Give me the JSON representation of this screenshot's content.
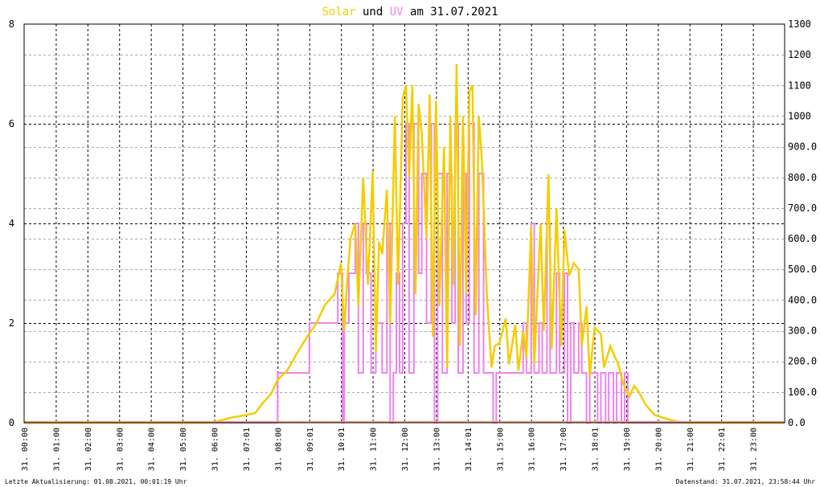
{
  "title": {
    "word1": "Solar",
    "word2": "und",
    "word3": "UV",
    "word4": "am 31.07.2021"
  },
  "footer": {
    "left": "Letzte Aktualisierung: 01.08.2021, 00:01:19 Uhr",
    "right": "Datenstand: 31.07.2021, 23:58:44 Uhr"
  },
  "chart_data": {
    "type": "line",
    "title": "Solar und UV am 31.07.2021",
    "grid": true,
    "legend": "none",
    "x_ticks": [
      "31. 00:00",
      "31. 01:00",
      "31. 02:00",
      "31. 03:00",
      "31. 04:00",
      "31. 05:00",
      "31. 06:00",
      "31. 07:01",
      "31. 08:00",
      "31. 09:01",
      "31. 10:01",
      "31. 11:00",
      "31. 12:00",
      "31. 13:00",
      "31. 14:01",
      "31. 15:00",
      "31. 16:00",
      "31. 17:00",
      "31. 18:01",
      "31. 19:00",
      "31. 20:00",
      "31. 21:00",
      "31. 22:01",
      "31. 23:00"
    ],
    "x_range_hours": [
      0,
      24
    ],
    "y_left": {
      "ticks": [
        "0",
        "2",
        "4",
        "6",
        "8"
      ],
      "range": [
        0,
        8
      ]
    },
    "y_right": {
      "ticks": [
        "0.0",
        "100.0",
        "200.0",
        "300.0",
        "400.0",
        "500.0",
        "600.0",
        "700.0",
        "800.0",
        "900.0",
        "1000",
        "1100",
        "1200",
        "1300"
      ],
      "range": [
        0,
        1300
      ]
    },
    "series": [
      {
        "name": "Solar",
        "axis": "right",
        "color": "#f5cc00",
        "points": [
          [
            0,
            0
          ],
          [
            5.9,
            0
          ],
          [
            6.0,
            3
          ],
          [
            6.3,
            10
          ],
          [
            6.6,
            18
          ],
          [
            7.0,
            25
          ],
          [
            7.3,
            32
          ],
          [
            7.5,
            60
          ],
          [
            7.8,
            95
          ],
          [
            8.0,
            140
          ],
          [
            8.3,
            170
          ],
          [
            8.6,
            225
          ],
          [
            8.9,
            275
          ],
          [
            9.2,
            320
          ],
          [
            9.5,
            385
          ],
          [
            9.8,
            420
          ],
          [
            10.0,
            520
          ],
          [
            10.1,
            300
          ],
          [
            10.2,
            470
          ],
          [
            10.3,
            600
          ],
          [
            10.45,
            650
          ],
          [
            10.55,
            380
          ],
          [
            10.7,
            800
          ],
          [
            10.85,
            450
          ],
          [
            11.0,
            820
          ],
          [
            11.1,
            230
          ],
          [
            11.2,
            590
          ],
          [
            11.3,
            550
          ],
          [
            11.45,
            760
          ],
          [
            11.55,
            320
          ],
          [
            11.7,
            1000
          ],
          [
            11.8,
            450
          ],
          [
            11.95,
            1060
          ],
          [
            12.05,
            1100
          ],
          [
            12.15,
            800
          ],
          [
            12.25,
            1100
          ],
          [
            12.35,
            420
          ],
          [
            12.45,
            1040
          ],
          [
            12.55,
            940
          ],
          [
            12.7,
            600
          ],
          [
            12.8,
            1070
          ],
          [
            12.9,
            280
          ],
          [
            13.0,
            1050
          ],
          [
            13.1,
            380
          ],
          [
            13.25,
            900
          ],
          [
            13.35,
            180
          ],
          [
            13.45,
            1000
          ],
          [
            13.55,
            450
          ],
          [
            13.65,
            1170
          ],
          [
            13.75,
            250
          ],
          [
            13.85,
            1000
          ],
          [
            13.95,
            420
          ],
          [
            14.05,
            1080
          ],
          [
            14.15,
            1100
          ],
          [
            14.25,
            350
          ],
          [
            14.35,
            1000
          ],
          [
            14.45,
            850
          ],
          [
            14.6,
            420
          ],
          [
            14.75,
            180
          ],
          [
            14.85,
            250
          ],
          [
            15.0,
            260
          ],
          [
            15.1,
            300
          ],
          [
            15.2,
            340
          ],
          [
            15.3,
            190
          ],
          [
            15.5,
            320
          ],
          [
            15.6,
            170
          ],
          [
            15.75,
            300
          ],
          [
            15.85,
            210
          ],
          [
            16.0,
            640
          ],
          [
            16.1,
            190
          ],
          [
            16.3,
            650
          ],
          [
            16.4,
            300
          ],
          [
            16.55,
            810
          ],
          [
            16.65,
            240
          ],
          [
            16.8,
            700
          ],
          [
            16.95,
            250
          ],
          [
            17.05,
            630
          ],
          [
            17.2,
            480
          ],
          [
            17.35,
            520
          ],
          [
            17.5,
            500
          ],
          [
            17.6,
            250
          ],
          [
            17.75,
            380
          ],
          [
            17.85,
            150
          ],
          [
            18.0,
            310
          ],
          [
            18.2,
            290
          ],
          [
            18.3,
            180
          ],
          [
            18.5,
            250
          ],
          [
            18.75,
            190
          ],
          [
            18.9,
            130
          ],
          [
            19.1,
            85
          ],
          [
            19.25,
            120
          ],
          [
            19.4,
            100
          ],
          [
            19.6,
            60
          ],
          [
            19.9,
            25
          ],
          [
            20.3,
            12
          ],
          [
            20.6,
            4
          ],
          [
            20.9,
            0
          ],
          [
            24,
            0
          ]
        ]
      },
      {
        "name": "UV",
        "axis": "left",
        "color": "#ee82ee",
        "points": [
          [
            0,
            0
          ],
          [
            8.0,
            0
          ],
          [
            8.0,
            1
          ],
          [
            9.0,
            1
          ],
          [
            9.0,
            2
          ],
          [
            9.9,
            2
          ],
          [
            9.9,
            3
          ],
          [
            10.05,
            3
          ],
          [
            10.05,
            0
          ],
          [
            10.1,
            0
          ],
          [
            10.1,
            2
          ],
          [
            10.25,
            2
          ],
          [
            10.25,
            3
          ],
          [
            10.45,
            3
          ],
          [
            10.45,
            4
          ],
          [
            10.55,
            4
          ],
          [
            10.55,
            1
          ],
          [
            10.7,
            1
          ],
          [
            10.7,
            4
          ],
          [
            10.8,
            4
          ],
          [
            10.8,
            3
          ],
          [
            10.95,
            3
          ],
          [
            10.95,
            1
          ],
          [
            11.1,
            1
          ],
          [
            11.1,
            2
          ],
          [
            11.3,
            2
          ],
          [
            11.3,
            1
          ],
          [
            11.45,
            1
          ],
          [
            11.45,
            4
          ],
          [
            11.55,
            4
          ],
          [
            11.55,
            0
          ],
          [
            11.65,
            0
          ],
          [
            11.65,
            1
          ],
          [
            11.75,
            1
          ],
          [
            11.75,
            3
          ],
          [
            11.85,
            3
          ],
          [
            11.85,
            1
          ],
          [
            11.95,
            1
          ],
          [
            11.95,
            4
          ],
          [
            12.05,
            4
          ],
          [
            12.05,
            6
          ],
          [
            12.15,
            6
          ],
          [
            12.15,
            1
          ],
          [
            12.3,
            1
          ],
          [
            12.3,
            6
          ],
          [
            12.45,
            6
          ],
          [
            12.45,
            3
          ],
          [
            12.55,
            3
          ],
          [
            12.55,
            5
          ],
          [
            12.7,
            5
          ],
          [
            12.7,
            2
          ],
          [
            12.85,
            2
          ],
          [
            12.85,
            6
          ],
          [
            12.95,
            6
          ],
          [
            12.95,
            0
          ],
          [
            13.05,
            0
          ],
          [
            13.05,
            5
          ],
          [
            13.2,
            5
          ],
          [
            13.2,
            1
          ],
          [
            13.35,
            1
          ],
          [
            13.35,
            5
          ],
          [
            13.5,
            5
          ],
          [
            13.5,
            2
          ],
          [
            13.6,
            2
          ],
          [
            13.6,
            6
          ],
          [
            13.7,
            6
          ],
          [
            13.7,
            1
          ],
          [
            13.85,
            1
          ],
          [
            13.85,
            5
          ],
          [
            13.95,
            5
          ],
          [
            13.95,
            2
          ],
          [
            14.05,
            2
          ],
          [
            14.05,
            6
          ],
          [
            14.2,
            6
          ],
          [
            14.2,
            1
          ],
          [
            14.35,
            1
          ],
          [
            14.35,
            5
          ],
          [
            14.5,
            5
          ],
          [
            14.5,
            1
          ],
          [
            14.8,
            1
          ],
          [
            14.8,
            0
          ],
          [
            14.9,
            0
          ],
          [
            14.9,
            1
          ],
          [
            15.75,
            1
          ],
          [
            15.75,
            2
          ],
          [
            15.85,
            2
          ],
          [
            15.85,
            1
          ],
          [
            16.0,
            1
          ],
          [
            16.0,
            4
          ],
          [
            16.1,
            4
          ],
          [
            16.1,
            1
          ],
          [
            16.25,
            1
          ],
          [
            16.25,
            2
          ],
          [
            16.35,
            2
          ],
          [
            16.35,
            1
          ],
          [
            16.5,
            1
          ],
          [
            16.5,
            4
          ],
          [
            16.6,
            4
          ],
          [
            16.6,
            1
          ],
          [
            16.8,
            1
          ],
          [
            16.8,
            3
          ],
          [
            16.9,
            3
          ],
          [
            16.9,
            1
          ],
          [
            17.05,
            1
          ],
          [
            17.05,
            3
          ],
          [
            17.15,
            3
          ],
          [
            17.15,
            0
          ],
          [
            17.25,
            0
          ],
          [
            17.25,
            2
          ],
          [
            17.35,
            2
          ],
          [
            17.35,
            1
          ],
          [
            17.5,
            1
          ],
          [
            17.5,
            2
          ],
          [
            17.6,
            2
          ],
          [
            17.6,
            1
          ],
          [
            17.75,
            1
          ],
          [
            17.75,
            0
          ],
          [
            17.85,
            0
          ],
          [
            17.85,
            1
          ],
          [
            18.1,
            1
          ],
          [
            18.1,
            0
          ],
          [
            18.2,
            0
          ],
          [
            18.2,
            1
          ],
          [
            18.35,
            1
          ],
          [
            18.35,
            0
          ],
          [
            18.45,
            0
          ],
          [
            18.45,
            1
          ],
          [
            18.6,
            1
          ],
          [
            18.6,
            0
          ],
          [
            18.7,
            0
          ],
          [
            18.7,
            1
          ],
          [
            18.85,
            1
          ],
          [
            18.85,
            0
          ],
          [
            18.95,
            0
          ],
          [
            18.95,
            1
          ],
          [
            19.05,
            1
          ],
          [
            19.05,
            0
          ],
          [
            24,
            0
          ]
        ]
      }
    ]
  }
}
